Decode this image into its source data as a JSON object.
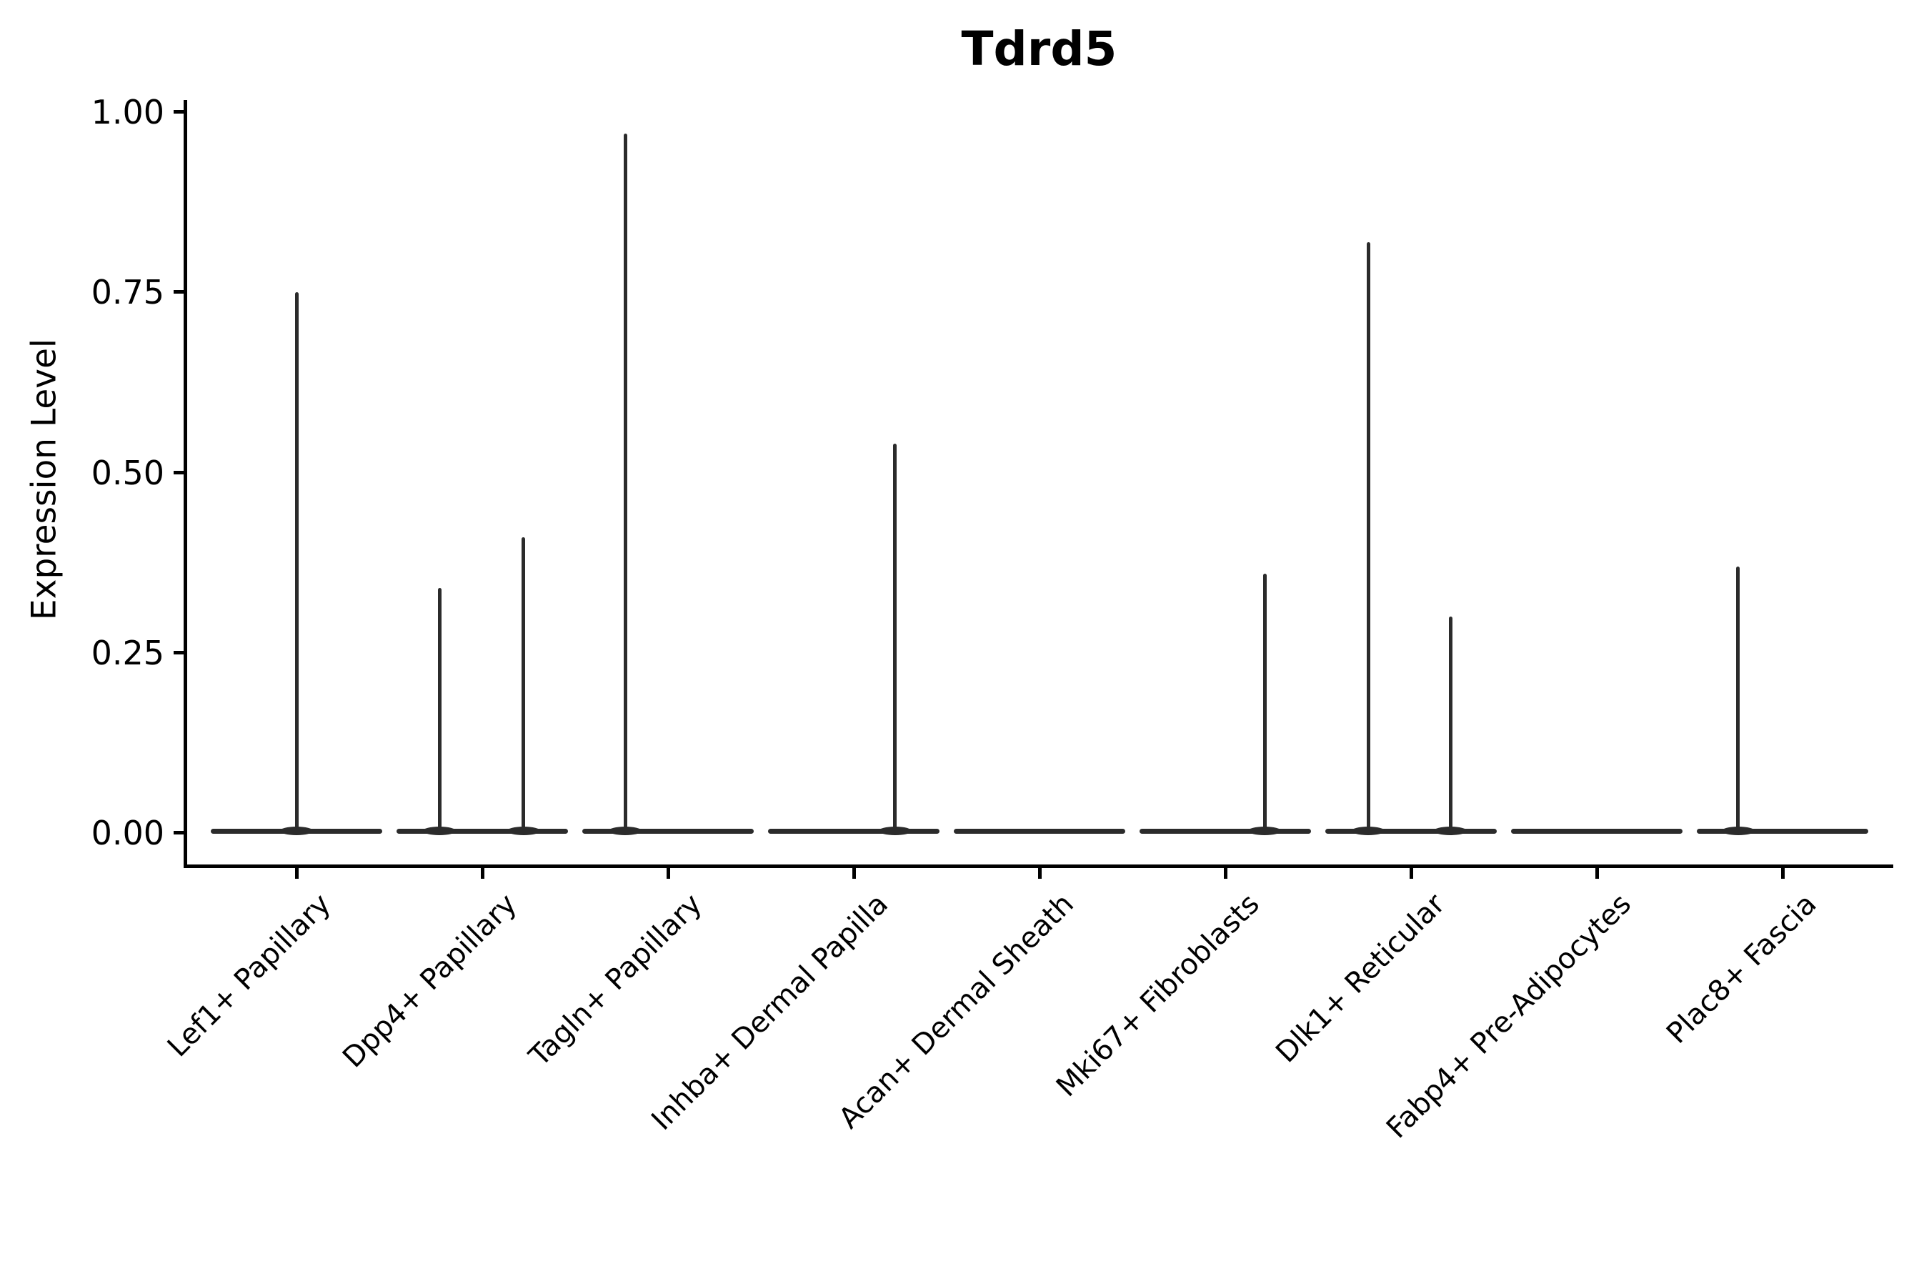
{
  "title": "Tdrd5",
  "axes": {
    "y_label": "Expression Level",
    "y_tick_labels": [
      "0.00",
      "0.25",
      "0.50",
      "0.75",
      "1.00"
    ]
  },
  "colors": {
    "violin": "#2b2b2b",
    "axis": "#000000",
    "text": "#000000",
    "background": "#ffffff"
  },
  "chart_data": {
    "type": "violin",
    "title": "Tdrd5",
    "xlabel": "",
    "ylabel": "Expression Level",
    "ylim": [
      0,
      1.0
    ],
    "y_ticks": [
      0.0,
      0.25,
      0.5,
      0.75,
      1.0
    ],
    "grid": false,
    "legend": false,
    "categories": [
      "Lef1+ Papillary",
      "Dpp4+ Papillary",
      "Tagln+ Papillary",
      "Inhba+ Dermal Papilla",
      "Acan+ Dermal Sheath",
      "Mki67+ Fibroblasts",
      "Dlk1+ Reticular",
      "Fabp4+ Pre-Adipocytes",
      "Plac8+ Fascia"
    ],
    "violins": [
      {
        "category": "Lef1+ Papillary",
        "band_value": 0.0,
        "spikes": [
          {
            "offset_frac": 0.0,
            "value": 0.75
          }
        ]
      },
      {
        "category": "Dpp4+ Papillary",
        "band_value": 0.0,
        "spikes": [
          {
            "offset_frac": -0.25,
            "value": 0.34
          },
          {
            "offset_frac": 0.24,
            "value": 0.41
          }
        ]
      },
      {
        "category": "Tagln+ Papillary",
        "band_value": 0.0,
        "spikes": [
          {
            "offset_frac": -0.25,
            "value": 0.97
          }
        ]
      },
      {
        "category": "Inhba+ Dermal Papilla",
        "band_value": 0.0,
        "spikes": [
          {
            "offset_frac": 0.24,
            "value": 0.54
          }
        ]
      },
      {
        "category": "Acan+ Dermal Sheath",
        "band_value": 0.0,
        "spikes": []
      },
      {
        "category": "Mki67+ Fibroblasts",
        "band_value": 0.0,
        "spikes": [
          {
            "offset_frac": 0.23,
            "value": 0.36
          }
        ]
      },
      {
        "category": "Dlk1+ Reticular",
        "band_value": 0.0,
        "spikes": [
          {
            "offset_frac": -0.25,
            "value": 0.82
          },
          {
            "offset_frac": 0.23,
            "value": 0.3
          }
        ]
      },
      {
        "category": "Fabp4+ Pre-Adipocytes",
        "band_value": 0.0,
        "spikes": []
      },
      {
        "category": "Plac8+ Fascia",
        "band_value": 0.0,
        "spikes": [
          {
            "offset_frac": -0.26,
            "value": 0.37
          }
        ]
      }
    ]
  }
}
